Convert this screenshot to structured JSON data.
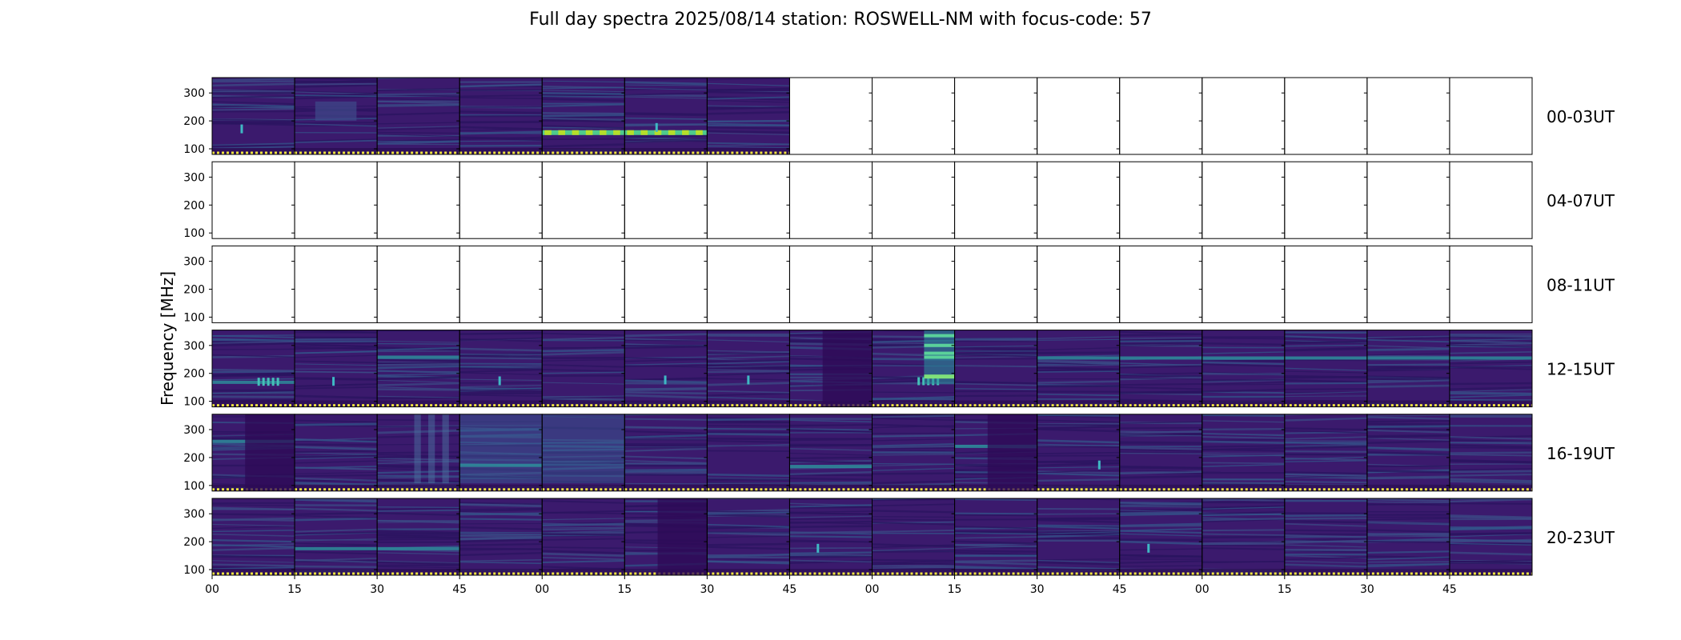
{
  "title": "Full day spectra 2025/08/14 station: ROSWELL-NM with focus-code: 57",
  "chart_data": {
    "type": "heatmap",
    "title": "Full day spectra 2025/08/14 station: ROSWELL-NM with focus-code: 57",
    "date": "2025/08/14",
    "station": "ROSWELL-NM",
    "focus_code": 57,
    "ylabel": "Frequency [MHz]",
    "ylim": [
      80,
      355
    ],
    "yticks": [
      100,
      200,
      300
    ],
    "colormap": "viridis",
    "x_tick_labels": [
      "00",
      "15",
      "30",
      "45",
      "00",
      "15",
      "30",
      "45",
      "00",
      "15",
      "30",
      "45",
      "00",
      "15",
      "30",
      "45"
    ],
    "rows": [
      {
        "label": "00-03UT",
        "available": [
          1,
          1,
          1,
          1,
          1,
          1,
          1,
          0,
          0,
          0,
          0,
          0,
          0,
          0,
          0,
          0
        ],
        "features": [
          {
            "panel": 0,
            "freq": 170,
            "kind": "spot"
          },
          {
            "panel": 1,
            "freq": 235,
            "kind": "patch"
          },
          {
            "panel": 4,
            "freq": 158,
            "kind": "band-bright"
          },
          {
            "panel": 5,
            "freq": 158,
            "kind": "band-bright"
          },
          {
            "panel": 5,
            "freq": 175,
            "kind": "spot"
          }
        ]
      },
      {
        "label": "04-07UT",
        "available": [
          0,
          0,
          0,
          0,
          0,
          0,
          0,
          0,
          0,
          0,
          0,
          0,
          0,
          0,
          0,
          0
        ],
        "features": []
      },
      {
        "label": "08-11UT",
        "available": [
          0,
          0,
          0,
          0,
          0,
          0,
          0,
          0,
          0,
          0,
          0,
          0,
          0,
          0,
          0,
          0
        ],
        "features": []
      },
      {
        "label": "12-15UT",
        "available": [
          1,
          1,
          1,
          1,
          1,
          1,
          1,
          1,
          1,
          1,
          1,
          1,
          1,
          1,
          1,
          1
        ],
        "features": [
          {
            "panel": 0,
            "freq": 168,
            "kind": "band"
          },
          {
            "panel": 0,
            "freq": 170,
            "kind": "spots"
          },
          {
            "panel": 1,
            "freq": 170,
            "kind": "spot"
          },
          {
            "panel": 2,
            "freq": 258,
            "kind": "band"
          },
          {
            "panel": 3,
            "freq": 172,
            "kind": "spot"
          },
          {
            "panel": 5,
            "freq": 175,
            "kind": "spot"
          },
          {
            "panel": 6,
            "freq": 175,
            "kind": "spot"
          },
          {
            "panel": 7,
            "freq": 160,
            "kind": "dark-block"
          },
          {
            "panel": 8,
            "freq": 172,
            "kind": "spots"
          },
          {
            "panel": 8,
            "freq": 260,
            "kind": "burst-column"
          },
          {
            "panel": 10,
            "freq": 255,
            "kind": "band"
          },
          {
            "panel": 11,
            "freq": 255,
            "kind": "band"
          },
          {
            "panel": 12,
            "freq": 255,
            "kind": "band"
          },
          {
            "panel": 13,
            "freq": 255,
            "kind": "band"
          },
          {
            "panel": 14,
            "freq": 255,
            "kind": "band"
          },
          {
            "panel": 15,
            "freq": 255,
            "kind": "band"
          }
        ]
      },
      {
        "label": "16-19UT",
        "available": [
          1,
          1,
          1,
          1,
          1,
          1,
          1,
          1,
          1,
          1,
          1,
          1,
          1,
          1,
          1,
          1
        ],
        "features": [
          {
            "panel": 0,
            "freq": 258,
            "kind": "band"
          },
          {
            "panel": 0,
            "freq": 200,
            "kind": "dark-block"
          },
          {
            "panel": 2,
            "freq": 220,
            "kind": "light-columns"
          },
          {
            "panel": 3,
            "freq": 220,
            "kind": "light-block"
          },
          {
            "panel": 3,
            "freq": 172,
            "kind": "band"
          },
          {
            "panel": 4,
            "freq": 220,
            "kind": "light-block"
          },
          {
            "panel": 7,
            "freq": 168,
            "kind": "band"
          },
          {
            "panel": 9,
            "freq": 240,
            "kind": "band"
          },
          {
            "panel": 9,
            "freq": 200,
            "kind": "dark-block"
          },
          {
            "panel": 10,
            "freq": 172,
            "kind": "spot"
          }
        ]
      },
      {
        "label": "20-23UT",
        "available": [
          1,
          1,
          1,
          1,
          1,
          1,
          1,
          1,
          1,
          1,
          1,
          1,
          1,
          1,
          1,
          1
        ],
        "features": [
          {
            "panel": 1,
            "freq": 175,
            "kind": "band"
          },
          {
            "panel": 2,
            "freq": 175,
            "kind": "band"
          },
          {
            "panel": 5,
            "freq": 220,
            "kind": "dark-block"
          },
          {
            "panel": 7,
            "freq": 175,
            "kind": "spot"
          },
          {
            "panel": 11,
            "freq": 175,
            "kind": "spot"
          }
        ]
      }
    ]
  }
}
